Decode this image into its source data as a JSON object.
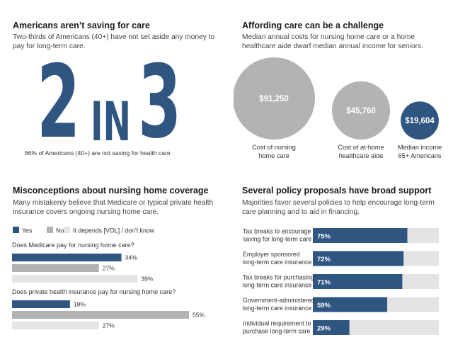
{
  "top_left": {
    "title": "Americans aren’t saving for care",
    "subtitle": "Two-thirds of Americans (40+) have not set aside any money to pay for long-term care.",
    "stat_num1": "2",
    "stat_word": "IN",
    "stat_num2": "3",
    "caption": "66% of Americans (40+) are not saving for health care"
  },
  "top_right": {
    "title": "Affording care can be a challenge",
    "subtitle": "Median annual costs for nursing home care or a home healthcare aide dwarf median annual income for seniors."
  },
  "bottom_left": {
    "title": "Misconceptions about nursing home coverage",
    "subtitle": "Many mistakenly believe that Medicare or typical private health insurance covers ongoing nursing home care."
  },
  "bottom_right": {
    "title": "Several policy proposals have broad support",
    "subtitle": "Majorities favor several policies to help encourage long-term care planning and to aid in financing."
  },
  "colors": {
    "navy": "#2f5581",
    "gray": "#b3b3b3",
    "lightgray": "#e4e4e4"
  },
  "chart_data": [
    {
      "type": "bubble",
      "categories": [
        "Cost of nursing home care",
        "Cost of at-home healthcare aide",
        "Median income 65+ Americans"
      ],
      "values": [
        91250,
        45760,
        19604
      ],
      "value_labels": [
        "$91,250",
        "$45,760",
        "$19,604"
      ],
      "category_lines": [
        [
          "Cost of nursing",
          "home care"
        ],
        [
          "Cost of at-home",
          "healthcare aide"
        ],
        [
          "Median income",
          "65+ Americans"
        ]
      ],
      "colors": [
        "#b3b3b3",
        "#b3b3b3",
        "#2f5581"
      ]
    },
    {
      "type": "bar",
      "orientation": "horizontal",
      "legend": [
        "Yes",
        "No",
        "It depends [VOL] / don't know"
      ],
      "series_colors": [
        "#2f5581",
        "#b3b3b3",
        "#e4e4e4"
      ],
      "questions": [
        {
          "question": "Does Medicare pay for nursing home care?",
          "values": [
            34,
            27,
            39
          ]
        },
        {
          "question": "Does private health insurance pay for nursing home care?",
          "values": [
            18,
            55,
            27
          ]
        }
      ],
      "unit": "%",
      "xlim": [
        0,
        55
      ]
    },
    {
      "type": "bar",
      "orientation": "horizontal",
      "stacked_on_track": true,
      "categories": [
        [
          "Tax breaks to encourage",
          "saving for long-term care"
        ],
        [
          "Employer sponsored",
          "long-term care insurance"
        ],
        [
          "Tax breaks for purchasing",
          "long-term care insurance"
        ],
        [
          "Government-administered",
          "long-term care insurance"
        ],
        [
          "Individual requirement to",
          "purchase long-term care"
        ]
      ],
      "values": [
        75,
        72,
        71,
        59,
        29
      ],
      "unit": "%",
      "xlim": [
        0,
        100
      ]
    }
  ]
}
